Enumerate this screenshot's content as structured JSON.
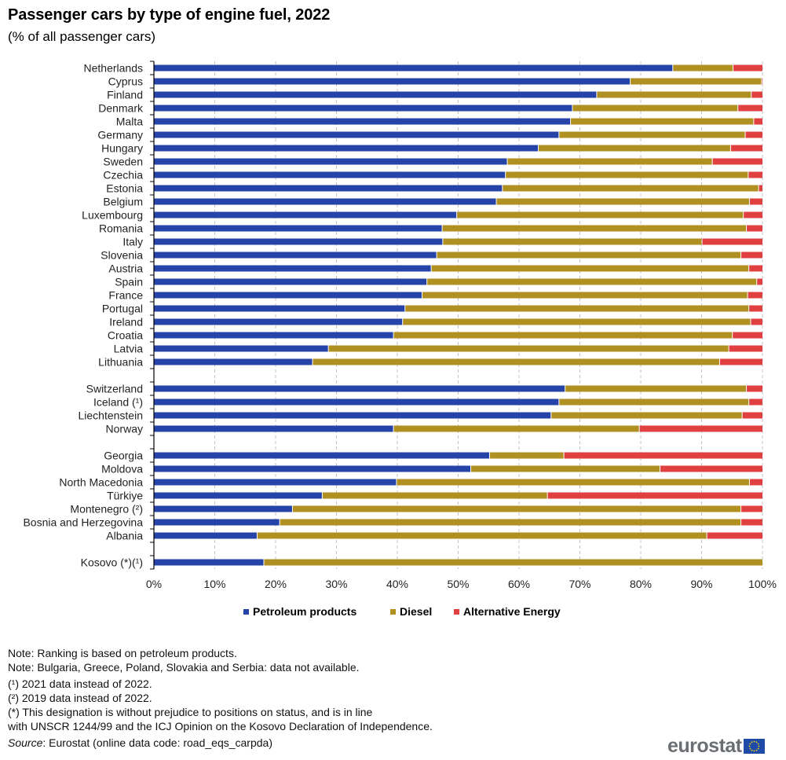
{
  "header": {
    "title": "Passenger cars by type of engine fuel, 2022",
    "subtitle": "(% of all passenger cars)"
  },
  "chart_data": {
    "type": "bar",
    "orientation": "horizontal",
    "stacked": true,
    "title": "Passenger cars by type of engine fuel, 2022",
    "subtitle": "(% of all passenger cars)",
    "xlabel": "",
    "ylabel": "",
    "xlim": [
      0,
      100
    ],
    "x_ticks": [
      "0%",
      "10%",
      "20%",
      "30%",
      "40%",
      "50%",
      "60%",
      "70%",
      "80%",
      "90%",
      "100%"
    ],
    "grid": "vertical dashed",
    "legend_position": "bottom",
    "colors": {
      "Petroleum products": "#2644a8",
      "Diesel": "#b09020",
      "Alternative Energy": "#e04040"
    },
    "groups": [
      [
        "Netherlands",
        "Cyprus",
        "Finland",
        "Denmark",
        "Malta",
        "Germany",
        "Hungary",
        "Sweden",
        "Czechia",
        "Estonia",
        "Belgium",
        "Luxembourg",
        "Romania",
        "Italy",
        "Slovenia",
        "Austria",
        "Spain",
        "France",
        "Portugal",
        "Ireland",
        "Croatia",
        "Latvia",
        "Lithuania"
      ],
      [
        "Switzerland",
        "Iceland (¹)",
        "Liechtenstein",
        "Norway"
      ],
      [
        "Georgia",
        "Moldova",
        "North Macedonia",
        "Türkiye",
        "Montenegro (²)",
        "Bosnia and Herzegovina",
        "Albania"
      ],
      [
        "Kosovo (*)(¹)"
      ]
    ],
    "categories": [
      "Netherlands",
      "Cyprus",
      "Finland",
      "Denmark",
      "Malta",
      "Germany",
      "Hungary",
      "Sweden",
      "Czechia",
      "Estonia",
      "Belgium",
      "Luxembourg",
      "Romania",
      "Italy",
      "Slovenia",
      "Austria",
      "Spain",
      "France",
      "Portugal",
      "Ireland",
      "Croatia",
      "Latvia",
      "Lithuania",
      "Switzerland",
      "Iceland (¹)",
      "Liechtenstein",
      "Norway",
      "Georgia",
      "Moldova",
      "North Macedonia",
      "Türkiye",
      "Montenegro (²)",
      "Bosnia and Herzegovina",
      "Albania",
      "Kosovo (*)(¹)"
    ],
    "series": [
      {
        "name": "Petroleum products",
        "values": [
          85.2,
          78.2,
          72.7,
          68.7,
          68.4,
          66.5,
          63.1,
          58.0,
          57.7,
          57.2,
          56.2,
          49.7,
          47.3,
          47.4,
          46.4,
          45.5,
          44.8,
          44.0,
          41.2,
          40.8,
          39.3,
          28.6,
          26.0,
          67.5,
          66.5,
          65.2,
          39.3,
          55.1,
          52.0,
          39.8,
          27.6,
          22.7,
          20.6,
          16.9,
          18.0
        ]
      },
      {
        "name": "Diesel",
        "values": [
          9.9,
          21.6,
          25.4,
          27.2,
          30.1,
          30.6,
          31.6,
          33.7,
          39.9,
          42.1,
          41.6,
          47.1,
          50.0,
          42.6,
          50.0,
          52.2,
          54.2,
          53.5,
          56.5,
          57.2,
          55.7,
          65.8,
          66.9,
          29.8,
          31.2,
          31.4,
          40.4,
          12.2,
          31.1,
          58.0,
          37.0,
          73.7,
          75.8,
          73.9,
          82.0
        ]
      },
      {
        "name": "Alternative Energy",
        "values": [
          4.9,
          0.2,
          1.9,
          4.1,
          1.5,
          2.9,
          5.3,
          8.3,
          2.4,
          0.7,
          2.2,
          3.2,
          2.7,
          10.0,
          3.6,
          2.3,
          1.0,
          2.5,
          2.3,
          2.0,
          5.0,
          5.6,
          7.1,
          2.7,
          2.3,
          3.4,
          20.3,
          32.7,
          16.9,
          2.2,
          35.4,
          3.6,
          3.6,
          9.2,
          0.0
        ]
      }
    ]
  },
  "legend": {
    "items": [
      {
        "label": "Petroleum products",
        "color": "#2644a8"
      },
      {
        "label": "Diesel",
        "color": "#b09020"
      },
      {
        "label": "Alternative Energy",
        "color": "#e04040"
      }
    ]
  },
  "notes": {
    "note1": "Note: Ranking is based on petroleum products.",
    "note2": "Note: Bulgaria, Greece, Poland, Slovakia and Serbia: data not available.",
    "foot1": "(¹) 2021 data instead of 2022.",
    "foot2": "(²) 2019 data instead of 2022.",
    "foot3a": "(*) This designation is without prejudice to positions on status, and is in line",
    "foot3b": "with UNSCR 1244/99 and the ICJ Opinion on the Kosovo Declaration of Independence.",
    "source_label": "Source",
    "source_text": ": Eurostat (online data code: road_eqs_carpda)"
  },
  "logo": {
    "text": "eurostat",
    "icon": "eu-flag-icon"
  }
}
